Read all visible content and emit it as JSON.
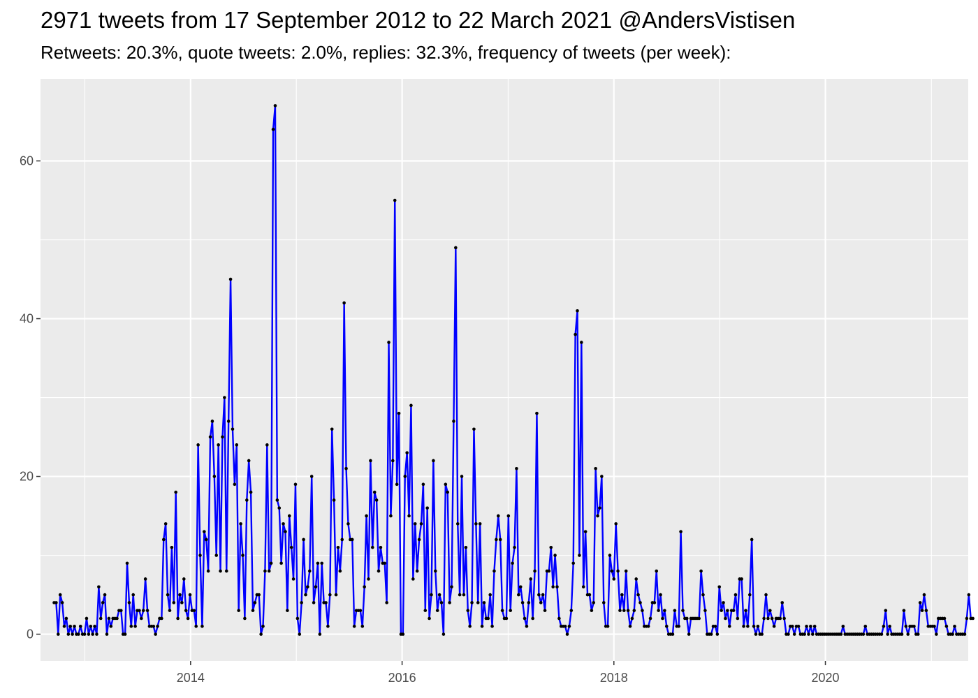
{
  "title": "2971 tweets from 17 September 2012 to 22 March 2021 @AndersVistisen",
  "subtitle": "Retweets: 20.3%, quote tweets: 2.0%, replies: 32.3%, frequency of tweets (per week):",
  "chart_data": {
    "type": "line",
    "title": "2971 tweets from 17 September 2012 to 22 March 2021 @AndersVistisen",
    "subtitle": "Retweets: 20.3%, quote tweets: 2.0%, replies: 32.3%, frequency of tweets (per week):",
    "xlabel": "",
    "ylabel": "",
    "x_ticks": [
      "2014",
      "2016",
      "2018",
      "2020"
    ],
    "y_ticks": [
      "0",
      "20",
      "40",
      "60"
    ],
    "xlim": [
      "2012-08-01",
      "2021-05-08"
    ],
    "ylim": [
      -3.4,
      70.4
    ],
    "grid": true,
    "background": "#EBEBEB",
    "line_color": "#0000FF",
    "point_color": "#000000",
    "x_start": "2012-09-17",
    "x_interval_days": 7,
    "values": [
      4,
      4,
      0,
      5,
      4,
      1,
      2,
      0,
      1,
      0,
      1,
      0,
      0,
      1,
      0,
      0,
      2,
      0,
      1,
      0,
      1,
      0,
      6,
      2,
      4,
      5,
      0,
      2,
      1,
      2,
      2,
      2,
      3,
      3,
      0,
      0,
      9,
      4,
      1,
      5,
      1,
      3,
      3,
      2,
      3,
      7,
      3,
      1,
      1,
      1,
      0,
      1,
      2,
      2,
      12,
      14,
      5,
      3,
      11,
      4,
      18,
      2,
      5,
      4,
      7,
      3,
      2,
      5,
      3,
      3,
      1,
      24,
      10,
      1,
      13,
      12,
      8,
      25,
      27,
      20,
      10,
      24,
      8,
      25,
      30,
      8,
      27,
      45,
      26,
      19,
      24,
      3,
      14,
      10,
      2,
      17,
      22,
      18,
      3,
      4,
      5,
      5,
      0,
      1,
      8,
      24,
      8,
      9,
      64,
      67,
      17,
      16,
      9,
      14,
      13,
      3,
      15,
      11,
      7,
      19,
      2,
      0,
      4,
      12,
      5,
      6,
      8,
      20,
      4,
      6,
      9,
      0,
      9,
      4,
      4,
      1,
      5,
      26,
      17,
      5,
      11,
      8,
      12,
      42,
      21,
      14,
      12,
      12,
      1,
      3,
      3,
      3,
      1,
      6,
      15,
      7,
      22,
      11,
      18,
      17,
      8,
      11,
      9,
      9,
      4,
      37,
      15,
      22,
      55,
      19,
      28,
      0,
      0,
      20,
      23,
      15,
      29,
      7,
      14,
      8,
      12,
      14,
      19,
      3,
      16,
      2,
      5,
      22,
      8,
      3,
      5,
      4,
      0,
      19,
      18,
      4,
      6,
      27,
      49,
      14,
      5,
      20,
      5,
      11,
      3,
      1,
      4,
      26,
      14,
      4,
      14,
      1,
      4,
      2,
      2,
      5,
      1,
      8,
      12,
      15,
      12,
      3,
      2,
      2,
      15,
      3,
      9,
      11,
      21,
      5,
      6,
      4,
      2,
      1,
      4,
      7,
      2,
      8,
      28,
      5,
      4,
      5,
      3,
      8,
      8,
      11,
      6,
      10,
      6,
      2,
      1,
      1,
      1,
      0,
      1,
      3,
      9,
      38,
      41,
      10,
      37,
      6,
      13,
      5,
      5,
      3,
      4,
      21,
      15,
      16,
      20,
      4,
      1,
      1,
      10,
      8,
      7,
      14,
      8,
      3,
      5,
      3,
      8,
      3,
      1,
      2,
      3,
      7,
      5,
      4,
      3,
      1,
      1,
      1,
      2,
      4,
      4,
      8,
      3,
      5,
      2,
      3,
      1,
      0,
      0,
      0,
      3,
      1,
      1,
      13,
      3,
      2,
      2,
      0,
      2,
      2,
      2,
      2,
      2,
      8,
      5,
      3,
      0,
      0,
      0,
      1,
      1,
      0,
      6,
      3,
      4,
      2,
      3,
      1,
      3,
      3,
      5,
      2,
      7,
      7,
      1,
      3,
      1,
      5,
      12,
      1,
      0,
      1,
      0,
      0,
      2,
      5,
      2,
      3,
      2,
      1,
      2,
      2,
      2,
      4,
      2,
      0,
      0,
      1,
      1,
      0,
      1,
      1,
      0,
      0,
      0,
      1,
      0,
      1,
      0,
      1,
      0,
      0,
      0,
      0,
      0,
      0,
      0,
      0,
      0,
      0,
      0,
      0,
      0,
      1,
      0,
      0,
      0,
      0,
      0,
      0,
      0,
      0,
      0,
      0,
      1,
      0,
      0,
      0,
      0,
      0,
      0,
      0,
      0,
      1,
      3,
      0,
      1,
      0,
      0,
      0,
      0,
      0,
      0,
      3,
      1,
      0,
      1,
      1,
      1,
      0,
      0,
      4,
      3,
      5,
      3,
      1,
      1,
      1,
      1,
      0,
      2,
      2,
      2,
      2,
      1,
      0,
      0,
      0,
      1,
      0,
      0,
      0,
      0,
      0,
      2,
      5,
      2,
      2
    ]
  }
}
